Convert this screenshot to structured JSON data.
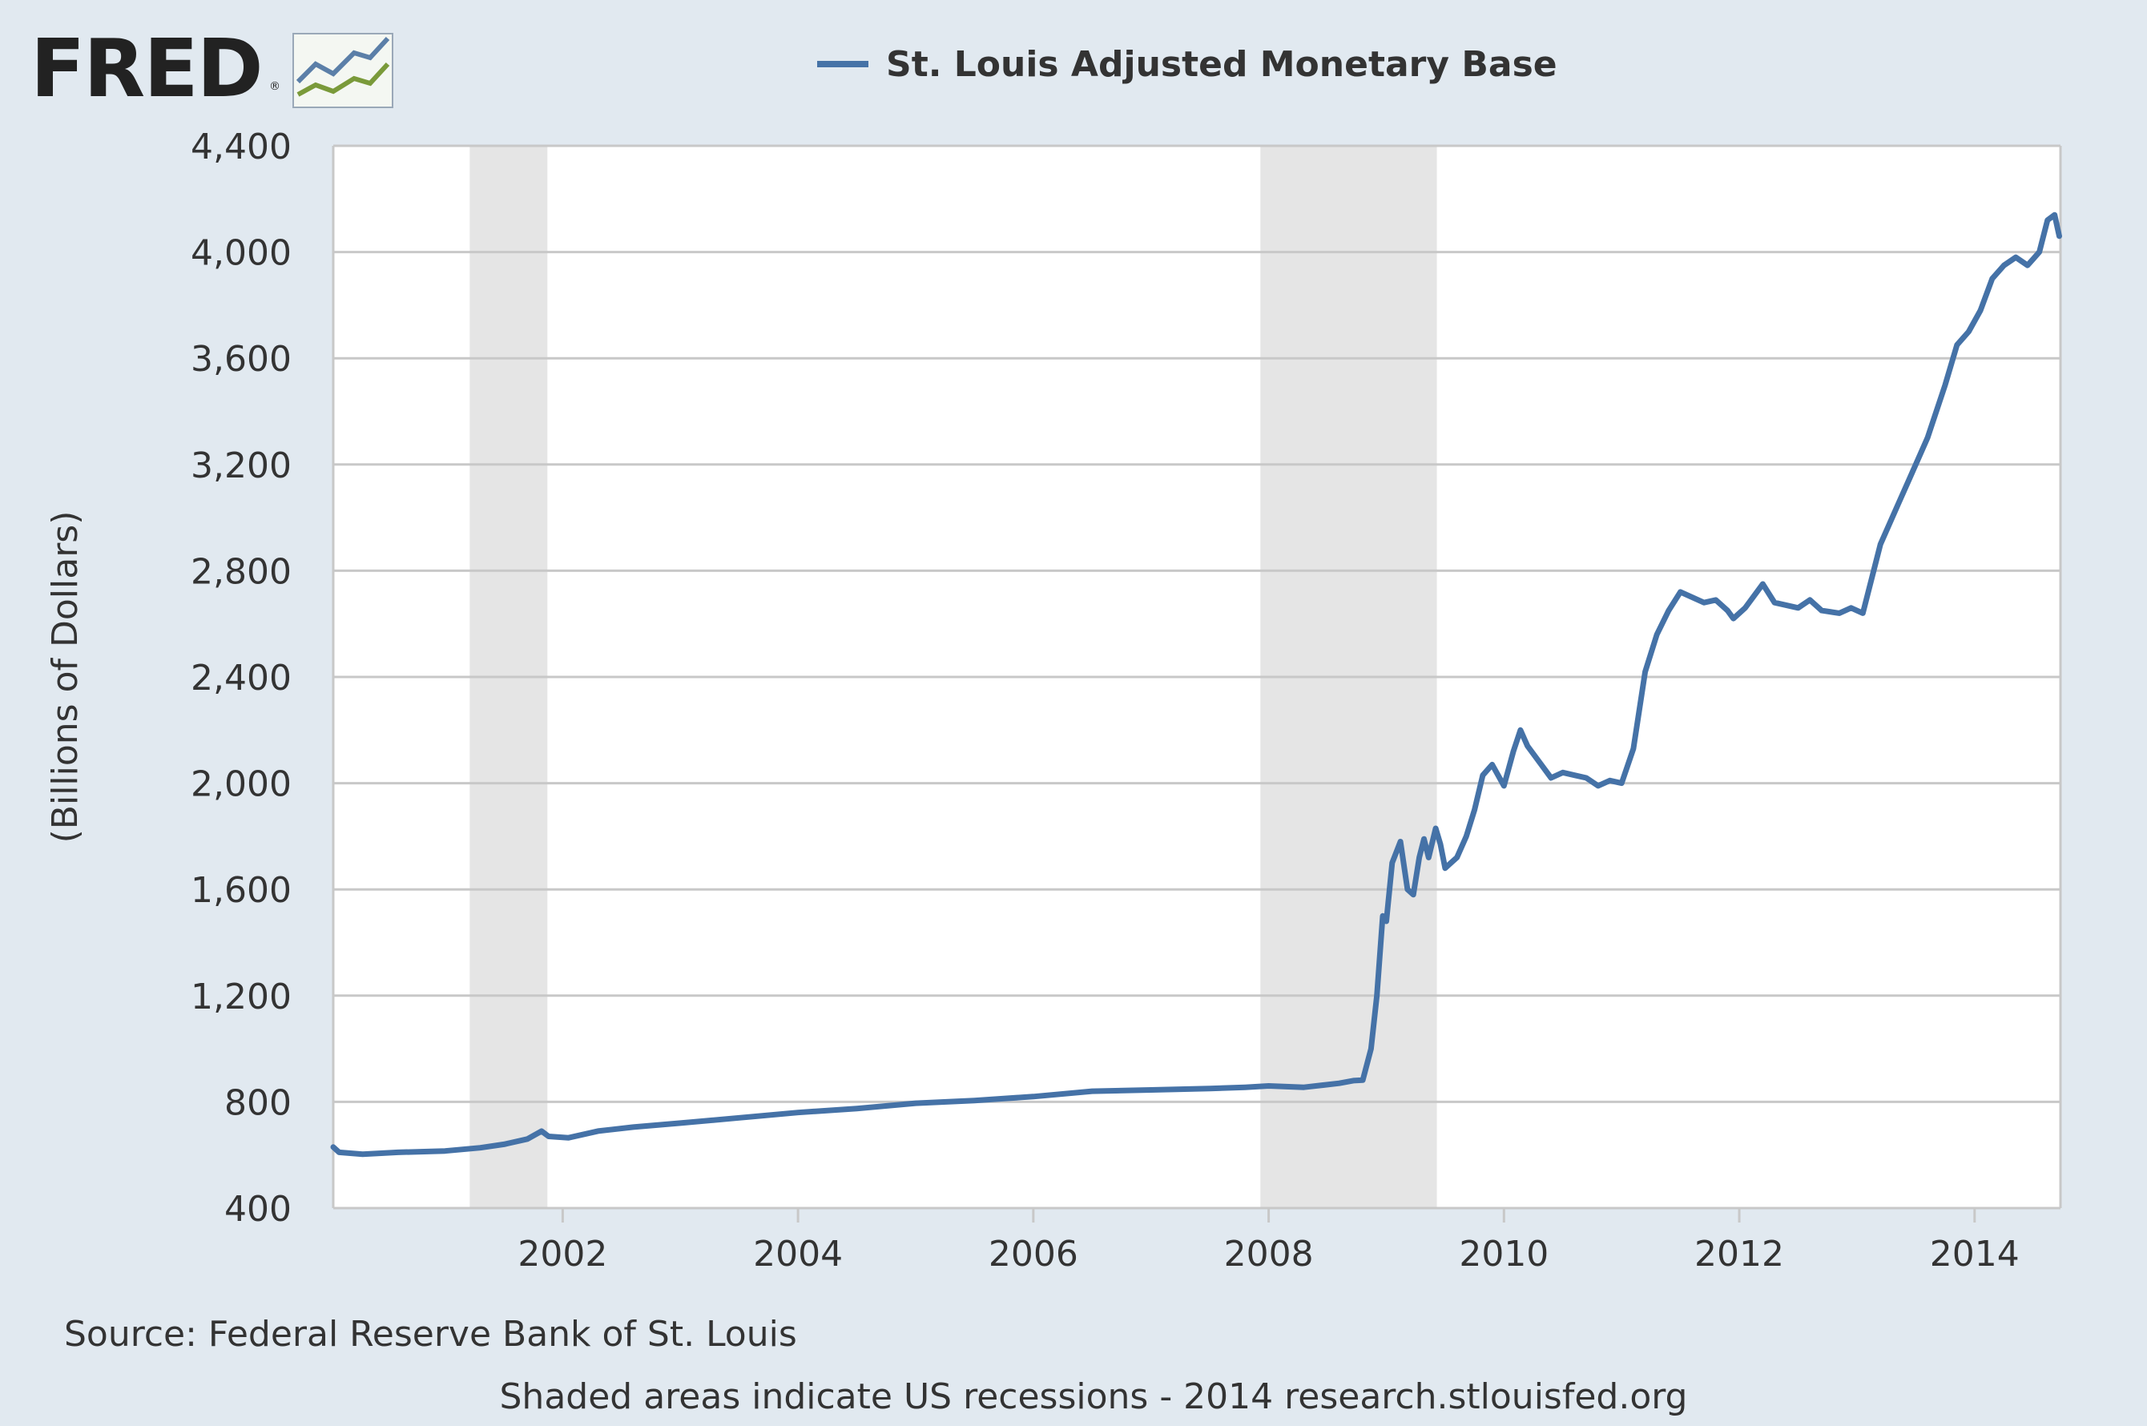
{
  "logo": {
    "text": "FRED",
    "registered": "®"
  },
  "colors": {
    "series": "#4572a7",
    "recession": "#e5e5e5",
    "grid": "#c8c8c8",
    "page_bg": "#e1e9f0",
    "plot_bg": "#ffffff"
  },
  "footer": {
    "source": "Source: Federal Reserve Bank of St. Louis",
    "note": "Shaded areas indicate US recessions - 2014 research.stlouisfed.org"
  },
  "chart_data": {
    "type": "line",
    "title": "",
    "ylabel": "(Billions of Dollars)",
    "xlabel": "",
    "xlim": [
      2000.05,
      2014.73
    ],
    "ylim": [
      400,
      4400
    ],
    "yticks": [
      400,
      800,
      1200,
      1600,
      2000,
      2400,
      2800,
      3200,
      3600,
      4000,
      4400
    ],
    "ytick_labels": [
      "400",
      "800",
      "1,200",
      "1,600",
      "2,000",
      "2,400",
      "2,800",
      "3,200",
      "3,600",
      "4,000",
      "4,400"
    ],
    "xticks": [
      2002,
      2004,
      2006,
      2008,
      2010,
      2012,
      2014
    ],
    "xtick_labels": [
      "2002",
      "2004",
      "2006",
      "2008",
      "2010",
      "2012",
      "2014"
    ],
    "grid": true,
    "legend": "top-center",
    "recessions": [
      [
        2001.21,
        2001.87
      ],
      [
        2007.93,
        2009.43
      ]
    ],
    "series": [
      {
        "name": "St. Louis Adjusted Monetary Base",
        "color": "#4572a7",
        "x": [
          2000.05,
          2000.1,
          2000.3,
          2000.6,
          2001.0,
          2001.3,
          2001.5,
          2001.7,
          2001.82,
          2001.88,
          2002.05,
          2002.3,
          2002.6,
          2003.0,
          2003.5,
          2004.0,
          2004.5,
          2005.0,
          2005.5,
          2006.0,
          2006.5,
          2007.0,
          2007.5,
          2007.8,
          2008.0,
          2008.3,
          2008.6,
          2008.72,
          2008.8,
          2008.87,
          2008.92,
          2008.97,
          2009.0,
          2009.05,
          2009.12,
          2009.18,
          2009.23,
          2009.28,
          2009.32,
          2009.36,
          2009.42,
          2009.46,
          2009.5,
          2009.55,
          2009.6,
          2009.68,
          2009.75,
          2009.82,
          2009.9,
          2009.95,
          2010.0,
          2010.08,
          2010.14,
          2010.2,
          2010.3,
          2010.4,
          2010.5,
          2010.6,
          2010.7,
          2010.8,
          2010.9,
          2011.0,
          2011.1,
          2011.2,
          2011.3,
          2011.4,
          2011.5,
          2011.6,
          2011.7,
          2011.8,
          2011.9,
          2011.95,
          2012.05,
          2012.2,
          2012.3,
          2012.5,
          2012.6,
          2012.7,
          2012.85,
          2012.95,
          2013.05,
          2013.2,
          2013.35,
          2013.45,
          2013.6,
          2013.75,
          2013.85,
          2013.95,
          2014.05,
          2014.15,
          2014.25,
          2014.35,
          2014.45,
          2014.55,
          2014.62,
          2014.68,
          2014.72
        ],
        "values": [
          630,
          610,
          603,
          610,
          615,
          627,
          640,
          660,
          690,
          670,
          665,
          690,
          705,
          720,
          740,
          760,
          775,
          795,
          805,
          820,
          840,
          845,
          850,
          855,
          860,
          855,
          870,
          880,
          882,
          1000,
          1200,
          1500,
          1480,
          1700,
          1780,
          1600,
          1580,
          1720,
          1790,
          1720,
          1830,
          1770,
          1680,
          1700,
          1720,
          1800,
          1900,
          2030,
          2070,
          2030,
          1990,
          2120,
          2200,
          2140,
          2080,
          2020,
          2040,
          2030,
          2020,
          1990,
          2010,
          2000,
          2130,
          2420,
          2560,
          2650,
          2720,
          2700,
          2680,
          2690,
          2650,
          2620,
          2660,
          2750,
          2680,
          2660,
          2690,
          2650,
          2640,
          2660,
          2640,
          2900,
          3050,
          3150,
          3300,
          3500,
          3650,
          3700,
          3780,
          3900,
          3950,
          3980,
          3950,
          4000,
          4120,
          4140,
          4060
        ]
      }
    ]
  }
}
